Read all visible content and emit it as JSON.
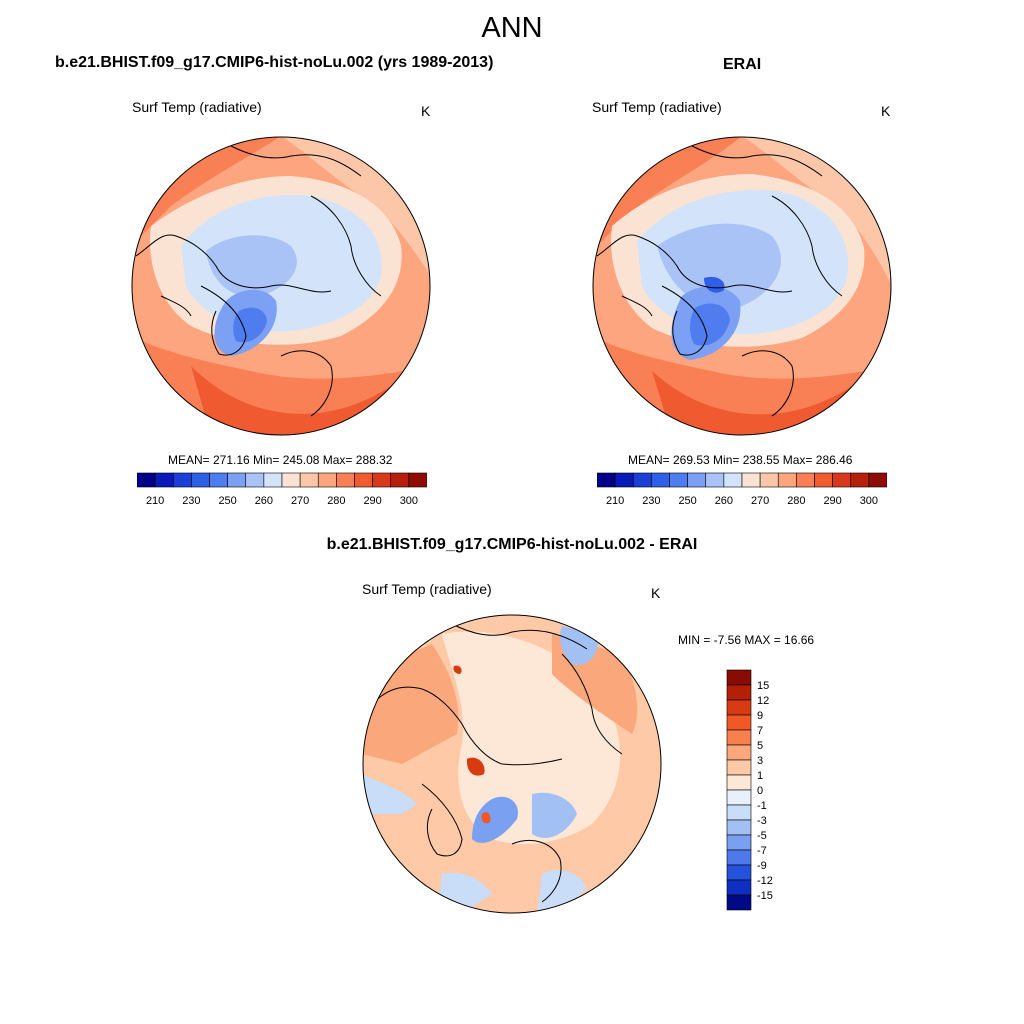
{
  "figure": {
    "title": "ANN",
    "var_label": "Surf Temp (radiative)",
    "unit": "K"
  },
  "panels": [
    {
      "title": "b.e21.BHIST.f09_g17.CMIP6-hist-noLu.002 (yrs 1989-2013)",
      "mean": "271.16",
      "min": "245.08",
      "max": "288.32",
      "stats_text": "MEAN= 271.16  Min= 245.08  Max= 288.32"
    },
    {
      "title": "ERAI",
      "mean": "269.53",
      "min": "238.55",
      "max": "286.46",
      "stats_text": "MEAN= 269.53  Min= 238.55  Max= 286.46"
    },
    {
      "title": "b.e21.BHIST.f09_g17.CMIP6-hist-noLu.002 - ERAI",
      "stats_text": "MIN =  -7.56 MAX =  16.66"
    }
  ],
  "abs_colorbar": {
    "tick_labels": [
      "210",
      "230",
      "250",
      "260",
      "270",
      "280",
      "290",
      "300"
    ],
    "colors": [
      "#000088",
      "#0a1ab8",
      "#1a3fd6",
      "#2f5ee8",
      "#4f7df0",
      "#7ca0f4",
      "#a9c3f7",
      "#d2e3fa",
      "#fbe3d3",
      "#fcc7a9",
      "#fca57f",
      "#f97f55",
      "#ef5a30",
      "#d8391a",
      "#b51f0b",
      "#8f0c02"
    ]
  },
  "diff_colorbar": {
    "tick_labels": [
      "15",
      "12",
      "9",
      "7",
      "5",
      "3",
      "1",
      "0",
      "-1",
      "-3",
      "-5",
      "-7",
      "-9",
      "-12",
      "-15"
    ],
    "colors": [
      "#8a0b00",
      "#b42005",
      "#d63b12",
      "#f25825",
      "#f8804f",
      "#fba77c",
      "#fdc9a6",
      "#fde7d7",
      "#e8f0fb",
      "#c9dcf8",
      "#a3c0f5",
      "#7aa0f1",
      "#4e79eb",
      "#2452dc",
      "#0e2fc0",
      "#000a87"
    ]
  }
}
